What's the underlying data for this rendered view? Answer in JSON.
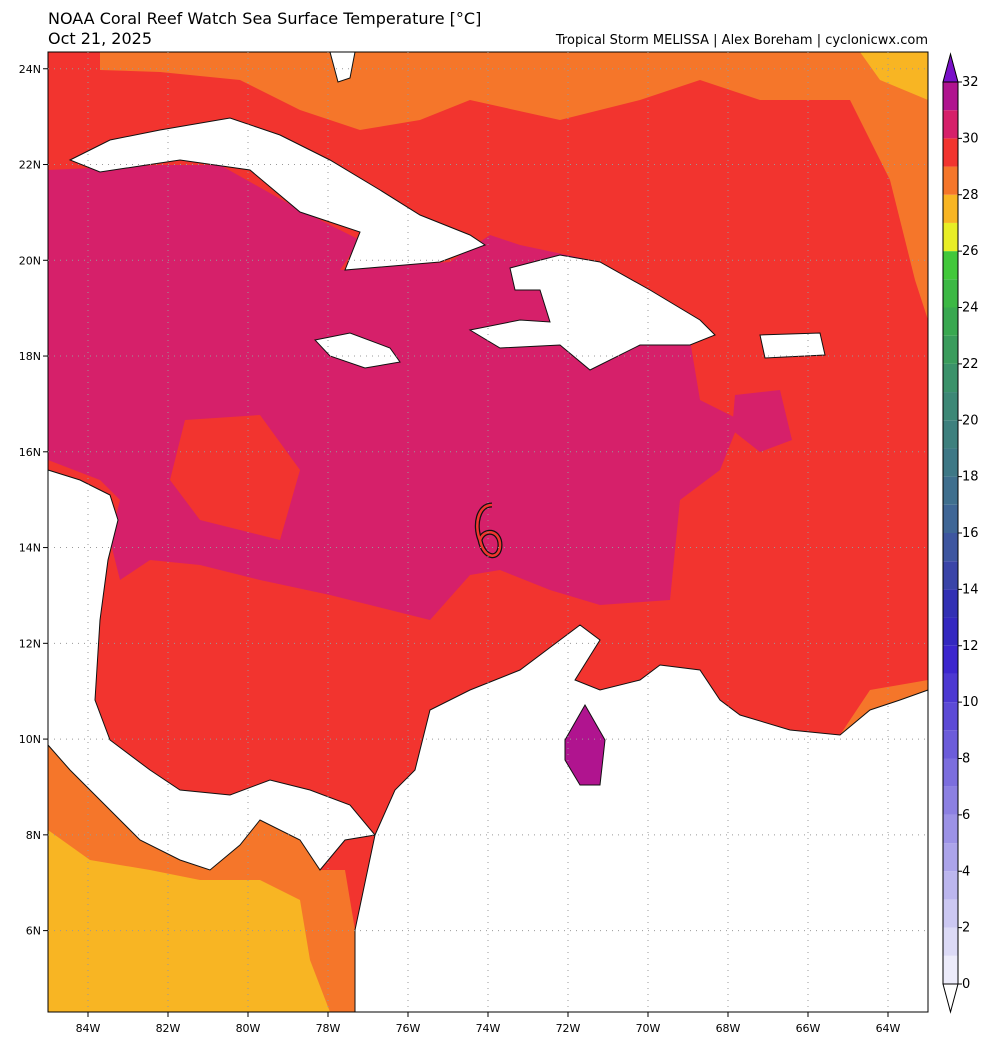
{
  "header": {
    "title": "NOAA Coral Reef Watch Sea Surface Temperature [°C]",
    "date": "Oct 21, 2025",
    "credit": "Tropical Storm MELISSA | Alex Boreham | cyclonicwx.com"
  },
  "map": {
    "xlim": [
      -85,
      -63
    ],
    "ylim": [
      4.3,
      24.35
    ],
    "xticks": [
      {
        "value": -84,
        "label": "84W"
      },
      {
        "value": -82,
        "label": "82W"
      },
      {
        "value": -80,
        "label": "80W"
      },
      {
        "value": -78,
        "label": "78W"
      },
      {
        "value": -76,
        "label": "76W"
      },
      {
        "value": -74,
        "label": "74W"
      },
      {
        "value": -72,
        "label": "72W"
      },
      {
        "value": -70,
        "label": "70W"
      },
      {
        "value": -68,
        "label": "68W"
      },
      {
        "value": -66,
        "label": "66W"
      },
      {
        "value": -64,
        "label": "64W"
      }
    ],
    "yticks": [
      {
        "value": 6,
        "label": "6N"
      },
      {
        "value": 8,
        "label": "8N"
      },
      {
        "value": 10,
        "label": "10N"
      },
      {
        "value": 12,
        "label": "12N"
      },
      {
        "value": 14,
        "label": "14N"
      },
      {
        "value": 16,
        "label": "16N"
      },
      {
        "value": 18,
        "label": "18N"
      },
      {
        "value": 20,
        "label": "20N"
      },
      {
        "value": 22,
        "label": "22N"
      },
      {
        "value": 24,
        "label": "24N"
      }
    ],
    "grid": true
  },
  "colorbar": {
    "range": [
      0,
      32
    ],
    "ticks": [
      0,
      2,
      4,
      6,
      8,
      10,
      12,
      14,
      16,
      18,
      20,
      22,
      24,
      26,
      28,
      30,
      32
    ],
    "colors": [
      "#ecebfa",
      "#dcdaf6",
      "#ccc8f2",
      "#bcb6ee",
      "#aca4ea",
      "#9c92e6",
      "#8c80e2",
      "#7c6ede",
      "#6c5cda",
      "#5c4ad6",
      "#4c38d2",
      "#3c26ce",
      "#3428c0",
      "#3230b4",
      "#3a44a8",
      "#3e56a0",
      "#3f6696",
      "#3f6f8e",
      "#3e7886",
      "#3e807e",
      "#3d8876",
      "#3b926a",
      "#3a9c5c",
      "#39a850",
      "#3cb844",
      "#42c83a",
      "#e8ee26",
      "#f8b523",
      "#f5762a",
      "#f2342f",
      "#d6206a",
      "#b0148f"
    ],
    "over_color": "#7a10c8",
    "under_color": "#ffffff"
  }
}
